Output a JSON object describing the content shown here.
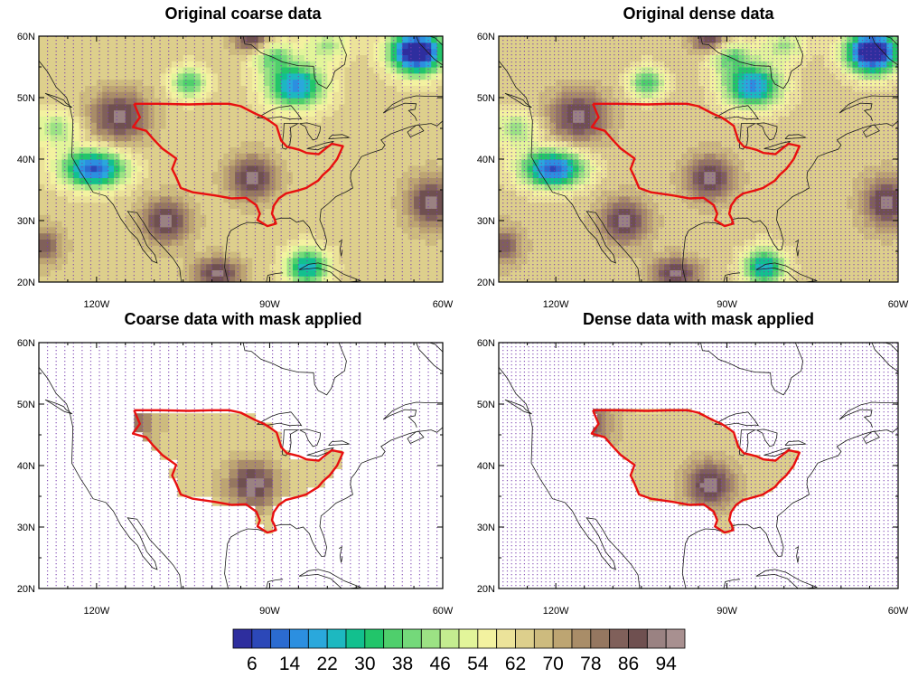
{
  "panels": [
    {
      "id": "coarse",
      "title": "Original coarse data",
      "mask": false,
      "grid_step": 1.5
    },
    {
      "id": "dense",
      "title": "Original dense data",
      "mask": false,
      "grid_step": 0.75
    },
    {
      "id": "coarse-mask",
      "title": "Coarse data with mask applied",
      "mask": true,
      "grid_step": 1.5
    },
    {
      "id": "dense-mask",
      "title": "Dense data with mask applied",
      "mask": true,
      "grid_step": 0.75
    }
  ],
  "axes": {
    "lon_range": [
      -130,
      -60
    ],
    "lat_range": [
      20,
      60
    ],
    "lon_ticks": [
      {
        "value": -120,
        "label": "120W"
      },
      {
        "value": -90,
        "label": "90W"
      },
      {
        "value": -60,
        "label": "60W"
      }
    ],
    "lat_ticks": [
      {
        "value": 20,
        "label": "20N"
      },
      {
        "value": 30,
        "label": "30N"
      },
      {
        "value": 40,
        "label": "40N"
      },
      {
        "value": 50,
        "label": "50N"
      },
      {
        "value": 60,
        "label": "60N"
      }
    ]
  },
  "colorbar": {
    "levels": [
      6,
      10,
      14,
      18,
      22,
      26,
      30,
      34,
      38,
      42,
      46,
      50,
      54,
      58,
      62,
      66,
      70,
      74,
      78,
      82,
      86,
      90,
      94
    ],
    "labels": [
      "6",
      "14",
      "22",
      "30",
      "38",
      "46",
      "54",
      "62",
      "70",
      "78",
      "86",
      "94"
    ],
    "colors": [
      "#2e2e9e",
      "#2c48b8",
      "#2b6bd0",
      "#2c8fe0",
      "#2aa8dc",
      "#1db8c0",
      "#12c08e",
      "#22c56a",
      "#4fcf6c",
      "#74d97a",
      "#9ce284",
      "#c4ec90",
      "#e2f59a",
      "#f3f2a0",
      "#ece39a",
      "#ddcf8c",
      "#cdbb7e",
      "#bda572",
      "#a98d68",
      "#957760",
      "#80605a",
      "#6f5050",
      "#9a8282",
      "#a89090"
    ]
  },
  "basin_outline_color": "#e81010",
  "grid_dot_color": "#7a3fb0"
}
